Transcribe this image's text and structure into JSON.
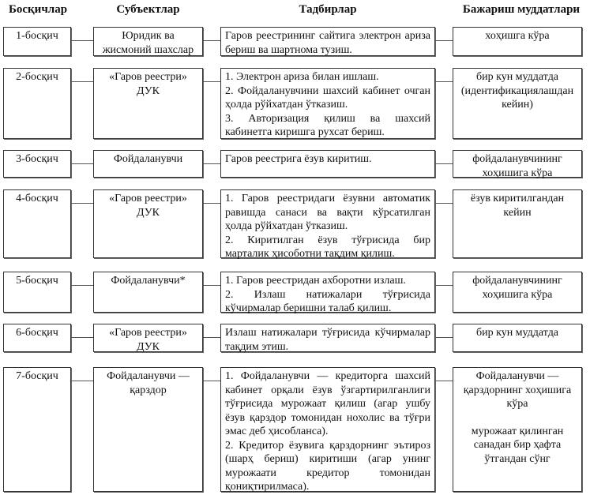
{
  "headers": [
    "Босқичлар",
    "Субъектлар",
    "Тадбирлар",
    "Бажариш муддатлари"
  ],
  "rows": [
    {
      "stage": "1-босқич",
      "subject": "Юридик ва жисмоний шахслар",
      "actions": [
        "Гаров реестрининг сайтига электрон ариза бериш ва шартнома тузиш."
      ],
      "deadline": [
        "хоҳишга кўра"
      ]
    },
    {
      "stage": "2-босқич",
      "subject": "«Гаров реестри» ДУК",
      "actions": [
        "1. Электрон ариза билан ишлаш.",
        "2. Фойдаланувчини шахсий кабинет очган ҳолда рўйхатдан ўтказиш.",
        "3. Авторизация қилиш ва шахсий кабинетга киришга рухсат бериш."
      ],
      "deadline": [
        "бир кун муддатда (идентификациялашдан кейин)"
      ]
    },
    {
      "stage": "3-босқич",
      "subject": "Фойдаланувчи",
      "actions": [
        "Гаров реестрига ёзув киритиш."
      ],
      "deadline": [
        "фойдаланувчининг хоҳишига кўра"
      ]
    },
    {
      "stage": "4-босқич",
      "subject": "«Гаров реестри» ДУК",
      "actions": [
        "1. Гаров реестридаги ёзувни автоматик равишда санаси ва вақти кўрсатилган ҳолда рўйхатдан ўтказиш.",
        "2. Киритилган ёзув тўғрисида бир марталик ҳисоботни тақдим қилиш."
      ],
      "deadline": [
        "ёзув киритилгандан кейин"
      ]
    },
    {
      "stage": "5-босқич",
      "subject": "Фойдаланувчи*",
      "actions": [
        "1. Гаров реестридан ахборотни излаш.",
        "2. Излаш натижалари тўғрисида кўчирмалар беришни талаб қилиш."
      ],
      "deadline": [
        "фойдаланувчининг хоҳишига кўра"
      ]
    },
    {
      "stage": "6-босқич",
      "subject": "«Гаров реестри» ДУК",
      "actions": [
        "Излаш натижалари тўғрисида кўчирмалар тақдим этиш."
      ],
      "deadline": [
        "бир кун муддатда"
      ]
    },
    {
      "stage": "7-босқич",
      "subject": "Фойдаланувчи — қарздор",
      "actions": [
        "1. Фойдаланувчи — кредиторга шахсий кабинет орқали ёзув ўзгартирилганлиги тўғрисида мурожаат қилиш (агар ушбу ёзув қарздор томонидан нохолис ва тўғри эмас деб ҳисобланса).",
        "2. Кредитор ёзувига қарздорнинг эътироз (шарҳ бериш) киритиши (агар унинг мурожаати кредитор томонидан қониқтирилмаса)."
      ],
      "deadline": [
        "Фойдаланувчи — қарздорнинг хоҳишига кўра",
        "мурожаат қилинган санадан бир ҳафта ўтгандан сўнг"
      ]
    }
  ]
}
